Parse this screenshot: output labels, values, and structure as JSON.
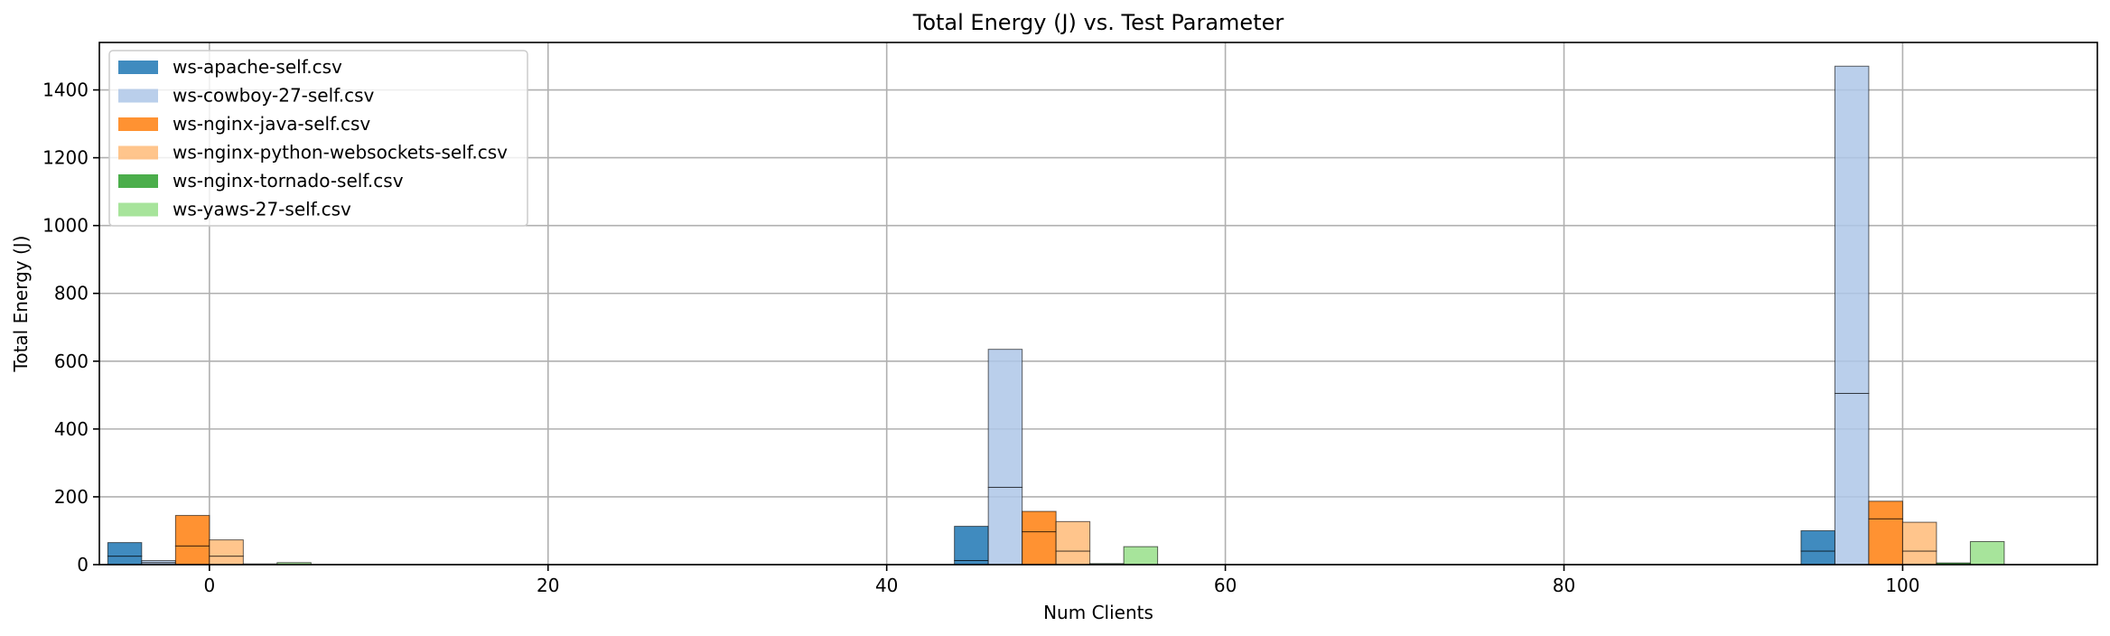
{
  "chart_data": {
    "type": "bar",
    "title": "Total Energy (J) vs. Test Parameter",
    "xlabel": "Num Clients",
    "ylabel": "Total Energy (J)",
    "xlim": [
      -6.5,
      111.5
    ],
    "ylim": [
      0,
      1540
    ],
    "xticks": [
      0,
      20,
      40,
      60,
      80,
      100
    ],
    "yticks": [
      0,
      200,
      400,
      600,
      800,
      1000,
      1200,
      1400
    ],
    "grid": true,
    "legend_position": "top-left",
    "bar_width": 2,
    "series": [
      {
        "name": "ws-apache-self.csv",
        "color": "#1f77b4",
        "points": [
          {
            "x": 0,
            "total": 65,
            "segments": [
              25,
              40
            ]
          },
          {
            "x": 50,
            "total": 113,
            "segments": [
              12,
              101
            ]
          },
          {
            "x": 100,
            "total": 100,
            "segments": [
              40,
              60
            ]
          }
        ]
      },
      {
        "name": "ws-cowboy-27-self.csv",
        "color": "#aec7e8",
        "points": [
          {
            "x": 0,
            "total": 12,
            "segments": [
              6,
              6
            ]
          },
          {
            "x": 50,
            "total": 635,
            "segments": [
              228,
              407
            ]
          },
          {
            "x": 100,
            "total": 1470,
            "segments": [
              505,
              965
            ]
          }
        ]
      },
      {
        "name": "ws-nginx-java-self.csv",
        "color": "#ff7f0e",
        "points": [
          {
            "x": 0,
            "total": 145,
            "segments": [
              55,
              90
            ]
          },
          {
            "x": 50,
            "total": 157,
            "segments": [
              97,
              60
            ]
          },
          {
            "x": 100,
            "total": 187,
            "segments": [
              135,
              52
            ]
          }
        ]
      },
      {
        "name": "ws-nginx-python-websockets-self.csv",
        "color": "#ffbb78",
        "points": [
          {
            "x": 0,
            "total": 73,
            "segments": [
              25,
              48
            ]
          },
          {
            "x": 50,
            "total": 127,
            "segments": [
              40,
              87
            ]
          },
          {
            "x": 100,
            "total": 125,
            "segments": [
              40,
              85
            ]
          }
        ]
      },
      {
        "name": "ws-nginx-tornado-self.csv",
        "color": "#2ca02c",
        "points": [
          {
            "x": 0,
            "total": 2,
            "segments": [
              2
            ]
          },
          {
            "x": 50,
            "total": 3,
            "segments": [
              3
            ]
          },
          {
            "x": 100,
            "total": 5,
            "segments": [
              5
            ]
          }
        ]
      },
      {
        "name": "ws-yaws-27-self.csv",
        "color": "#98df8a",
        "points": [
          {
            "x": 0,
            "total": 6,
            "segments": [
              6
            ]
          },
          {
            "x": 50,
            "total": 53,
            "segments": [
              53
            ]
          },
          {
            "x": 100,
            "total": 68,
            "segments": [
              68
            ]
          }
        ]
      }
    ]
  }
}
